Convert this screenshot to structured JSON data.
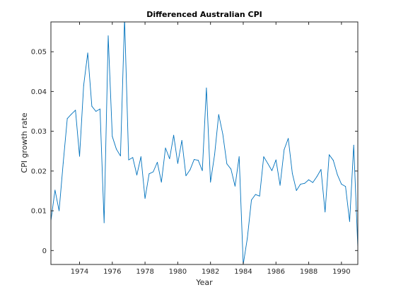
{
  "chart_data": {
    "type": "line",
    "title": "Differenced Australian CPI",
    "xlabel": "Year",
    "ylabel": "CPI growth rate",
    "xlim": [
      1972.25,
      1991.0
    ],
    "ylim": [
      -0.0035,
      0.0575
    ],
    "xticks": [
      1974,
      1976,
      1978,
      1980,
      1982,
      1984,
      1986,
      1988,
      1990
    ],
    "yticks": [
      0,
      0.01,
      0.02,
      0.03,
      0.04,
      0.05
    ],
    "xtick_labels": [
      "1974",
      "1976",
      "1978",
      "1980",
      "1982",
      "1984",
      "1986",
      "1988",
      "1990"
    ],
    "ytick_labels": [
      "0",
      "0.01",
      "0.02",
      "0.03",
      "0.04",
      "0.05"
    ],
    "grid": false,
    "color": "#0072bd",
    "series": [
      {
        "x": [
          1972.25,
          1972.5,
          1972.75,
          1973.0,
          1973.25,
          1973.5,
          1973.75,
          1974.0,
          1974.25,
          1974.5,
          1974.75,
          1975.0,
          1975.25,
          1975.5,
          1975.75,
          1976.0,
          1976.25,
          1976.5,
          1976.75,
          1977.0,
          1977.25,
          1977.5,
          1977.75,
          1978.0,
          1978.25,
          1978.5,
          1978.75,
          1979.0,
          1979.25,
          1979.5,
          1979.75,
          1980.0,
          1980.25,
          1980.5,
          1980.75,
          1981.0,
          1981.25,
          1981.5,
          1981.75,
          1982.0,
          1982.25,
          1982.5,
          1982.75,
          1983.0,
          1983.25,
          1983.5,
          1983.75,
          1984.0,
          1984.25,
          1984.5,
          1984.75,
          1985.0,
          1985.25,
          1985.5,
          1985.75,
          1986.0,
          1986.25,
          1986.5,
          1986.75,
          1987.0,
          1987.25,
          1987.5,
          1987.75,
          1988.0,
          1988.25,
          1988.5,
          1988.75,
          1989.0,
          1989.25,
          1989.5,
          1989.75,
          1990.0,
          1990.25,
          1990.5,
          1990.75,
          1991.0
        ],
        "values": [
          0.0075,
          0.0152,
          0.01,
          0.022,
          0.0332,
          0.0343,
          0.0353,
          0.0237,
          0.0415,
          0.0497,
          0.0363,
          0.035,
          0.0356,
          0.007,
          0.054,
          0.0287,
          0.0255,
          0.0238,
          0.0585,
          0.0228,
          0.0234,
          0.019,
          0.0236,
          0.0131,
          0.0193,
          0.0198,
          0.0222,
          0.0172,
          0.0258,
          0.0231,
          0.029,
          0.0219,
          0.0277,
          0.0188,
          0.0203,
          0.0229,
          0.0227,
          0.0201,
          0.0409,
          0.0172,
          0.0241,
          0.0342,
          0.0293,
          0.0218,
          0.0205,
          0.0162,
          0.0236,
          -0.0035,
          0.0031,
          0.0127,
          0.0141,
          0.0137,
          0.0236,
          0.0219,
          0.0201,
          0.0228,
          0.0164,
          0.0254,
          0.0282,
          0.0194,
          0.0151,
          0.0167,
          0.0169,
          0.0178,
          0.0171,
          0.0186,
          0.0204,
          0.0097,
          0.0241,
          0.0227,
          0.0191,
          0.0167,
          0.0161,
          0.0073,
          0.0265,
          0.0008
        ]
      }
    ]
  }
}
